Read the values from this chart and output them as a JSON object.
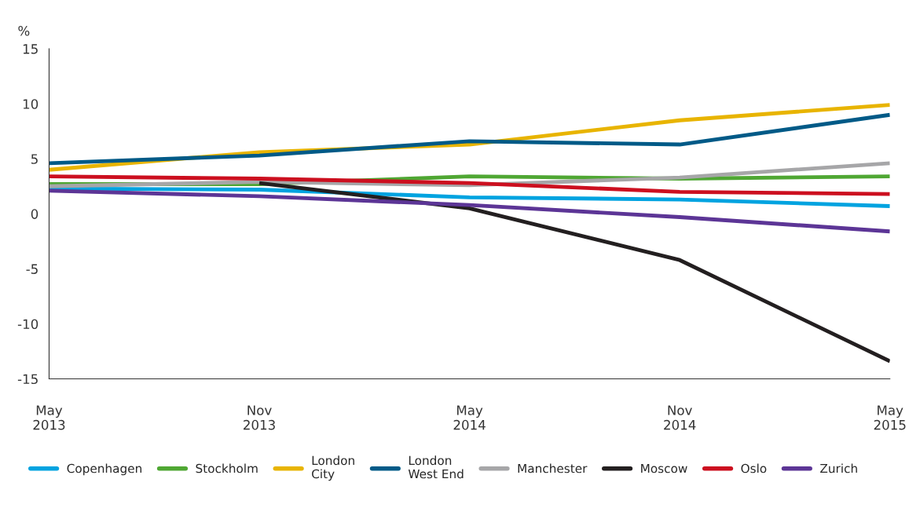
{
  "chart_data": {
    "type": "line",
    "ylabel": "%",
    "categories": [
      "May\n2013",
      "Nov\n2013",
      "May\n2014",
      "Nov\n2014",
      "May\n2015"
    ],
    "ylim": [
      -15,
      15
    ],
    "yticks": [
      -15,
      -10,
      -5,
      0,
      5,
      10,
      15
    ],
    "grid": false,
    "legend": "bottom",
    "marker": "none",
    "line_style": "solid",
    "series": [
      {
        "name": "Copenhagen",
        "color": "#00a3e0",
        "values": [
          2.3,
          2.2,
          1.5,
          1.3,
          0.7
        ]
      },
      {
        "name": "Stockholm",
        "color": "#4fa733",
        "values": [
          2.7,
          2.7,
          3.4,
          3.2,
          3.4
        ]
      },
      {
        "name": "London\nCity",
        "color": "#e8b400",
        "values": [
          4.0,
          5.6,
          6.3,
          8.5,
          9.9
        ]
      },
      {
        "name": "London\nWest End",
        "color": "#005a87",
        "values": [
          4.6,
          5.3,
          6.6,
          6.3,
          9.0
        ]
      },
      {
        "name": "Manchester",
        "color": "#a6a6a8",
        "values": [
          2.5,
          2.9,
          2.6,
          3.3,
          4.6
        ]
      },
      {
        "name": "Moscow",
        "color": "#231f20",
        "values": [
          null,
          2.8,
          0.5,
          -4.2,
          -13.4
        ]
      },
      {
        "name": "Oslo",
        "color": "#cc0f1f",
        "values": [
          3.4,
          3.2,
          2.8,
          2.0,
          1.8
        ]
      },
      {
        "name": "Zurich",
        "color": "#5c3596",
        "values": [
          2.1,
          1.6,
          0.8,
          -0.3,
          -1.6
        ]
      }
    ]
  }
}
